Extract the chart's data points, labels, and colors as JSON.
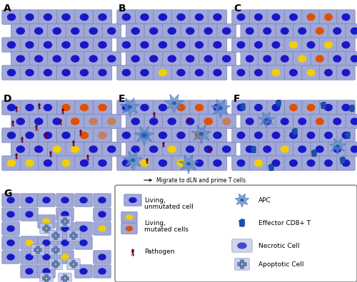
{
  "fig_width": 5.0,
  "fig_height": 3.96,
  "dpi": 100,
  "bg_color": "#ffffff",
  "cell_body_color": "#a0a8d8",
  "cell_border_color": "#7880b8",
  "nucleus_blue_color": "#1818c8",
  "nucleus_yellow_color": "#f0d000",
  "nucleus_orange_color": "#e05000",
  "nucleus_peach_color": "#c08060",
  "apc_color": "#6090d0",
  "apc_edge_color": "#4070b0",
  "effector_t_color": "#1850b0",
  "pathogen_color": "#700030",
  "necrotic_body_color": "#b8c0e0",
  "apoptotic_cross_color": "#5070b8",
  "panel_label_fontsize": 10,
  "legend_fontsize": 6.5,
  "panels": {
    "A": [
      3,
      3,
      157,
      108
    ],
    "B": [
      164,
      3,
      157,
      108
    ],
    "C": [
      325,
      3,
      172,
      108
    ],
    "D": [
      3,
      130,
      157,
      118
    ],
    "E": [
      164,
      130,
      157,
      118
    ],
    "F": [
      325,
      130,
      172,
      118
    ],
    "G": [
      3,
      263,
      157,
      130
    ],
    "LEG": [
      164,
      263,
      333,
      130
    ]
  }
}
